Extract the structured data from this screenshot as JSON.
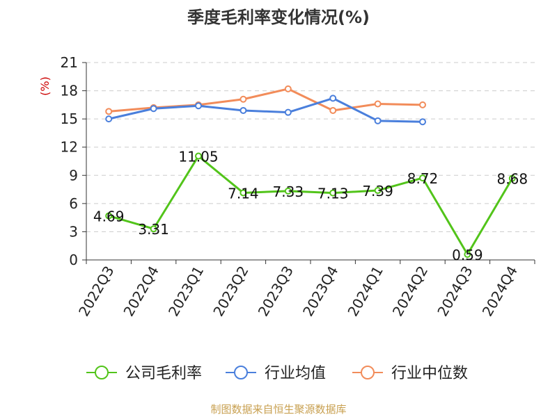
{
  "chart_data": {
    "type": "line",
    "title": "季度毛利率变化情况(%)",
    "ylabel": "(%)",
    "xlabel": "",
    "categories": [
      "2022Q3",
      "2022Q4",
      "2023Q1",
      "2023Q2",
      "2023Q3",
      "2023Q4",
      "2024Q1",
      "2024Q2",
      "2024Q3",
      "2024Q4"
    ],
    "ylim": [
      0,
      21
    ],
    "yticks": [
      "0",
      "3",
      "6",
      "9",
      "12",
      "15",
      "18",
      "21"
    ],
    "grid": true,
    "legend_position": "bottom",
    "series": [
      {
        "name": "公司毛利率",
        "color": "#52c41a",
        "values": [
          4.69,
          3.31,
          11.05,
          7.14,
          7.33,
          7.13,
          7.39,
          8.72,
          0.59,
          8.68
        ],
        "labels": [
          "4.69",
          "3.31",
          "11.05",
          "7.14",
          "7.33",
          "7.13",
          "7.39",
          "8.72",
          "0.59",
          "8.68"
        ]
      },
      {
        "name": "行业均值",
        "color": "#4a7fdc",
        "values": [
          15.0,
          16.1,
          16.4,
          15.9,
          15.7,
          17.2,
          14.8,
          14.7,
          null,
          null
        ],
        "labels": []
      },
      {
        "name": "行业中位数",
        "color": "#f28c5a",
        "values": [
          15.8,
          16.2,
          16.5,
          17.1,
          18.2,
          15.9,
          16.6,
          16.5,
          null,
          null
        ],
        "labels": []
      }
    ]
  },
  "source": "制图数据来自恒生聚源数据库"
}
